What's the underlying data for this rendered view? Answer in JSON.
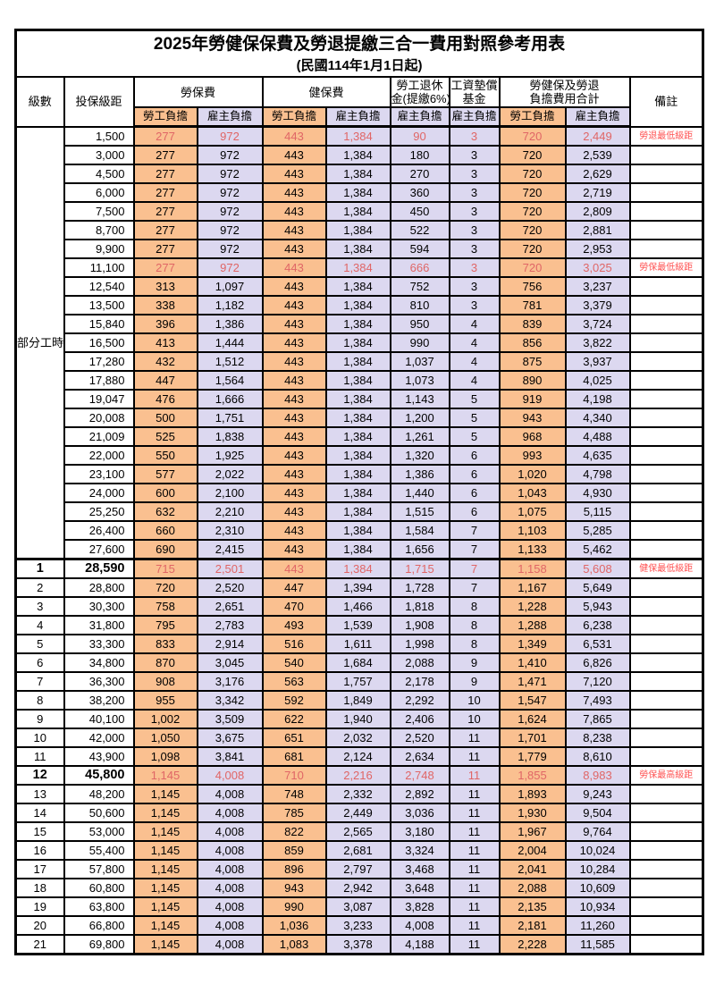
{
  "title": "2025年勞健保保費及勞退提繳三合一費用對照參考用表",
  "subtitle": "(民國114年1月1日起)",
  "header": {
    "level": "級數",
    "bracket": "投保級距",
    "labor_group": "勞保費",
    "health_group": "健保費",
    "pension_line1": "勞工退休",
    "pension_line2": "金(提繳6%)",
    "wagefund_line1": "工資墊償",
    "wagefund_line2": "基金",
    "total_line1": "勞健保及勞退",
    "total_line2": "負擔費用合計",
    "remark": "備註",
    "employee_share": "勞工負擔",
    "employer_share": "雇主負擔"
  },
  "part_time": {
    "label": "部分工時",
    "rowspan": 23
  },
  "colors": {
    "employee_col_bg": "#FAC090",
    "employer_col_bg": "#DCD8F0",
    "highlight_value": "#E06666",
    "remark_red": "#FF5252",
    "border": "#000000"
  },
  "rows": [
    {
      "bracket": "1,500",
      "values": [
        "277",
        "972",
        "443",
        "1,384",
        "90",
        "3",
        "720",
        "2,449"
      ],
      "remark": "勞退最低級距",
      "highlight": true
    },
    {
      "bracket": "3,000",
      "values": [
        "277",
        "972",
        "443",
        "1,384",
        "180",
        "3",
        "720",
        "2,539"
      ]
    },
    {
      "bracket": "4,500",
      "values": [
        "277",
        "972",
        "443",
        "1,384",
        "270",
        "3",
        "720",
        "2,629"
      ]
    },
    {
      "bracket": "6,000",
      "values": [
        "277",
        "972",
        "443",
        "1,384",
        "360",
        "3",
        "720",
        "2,719"
      ]
    },
    {
      "bracket": "7,500",
      "values": [
        "277",
        "972",
        "443",
        "1,384",
        "450",
        "3",
        "720",
        "2,809"
      ]
    },
    {
      "bracket": "8,700",
      "values": [
        "277",
        "972",
        "443",
        "1,384",
        "522",
        "3",
        "720",
        "2,881"
      ]
    },
    {
      "bracket": "9,900",
      "values": [
        "277",
        "972",
        "443",
        "1,384",
        "594",
        "3",
        "720",
        "2,953"
      ]
    },
    {
      "bracket": "11,100",
      "values": [
        "277",
        "972",
        "443",
        "1,384",
        "666",
        "3",
        "720",
        "3,025"
      ],
      "remark": "勞保最低級距",
      "highlight": true
    },
    {
      "bracket": "12,540",
      "values": [
        "313",
        "1,097",
        "443",
        "1,384",
        "752",
        "3",
        "756",
        "3,237"
      ]
    },
    {
      "bracket": "13,500",
      "values": [
        "338",
        "1,182",
        "443",
        "1,384",
        "810",
        "3",
        "781",
        "3,379"
      ]
    },
    {
      "bracket": "15,840",
      "values": [
        "396",
        "1,386",
        "443",
        "1,384",
        "950",
        "4",
        "839",
        "3,724"
      ]
    },
    {
      "bracket": "16,500",
      "values": [
        "413",
        "1,444",
        "443",
        "1,384",
        "990",
        "4",
        "856",
        "3,822"
      ]
    },
    {
      "bracket": "17,280",
      "values": [
        "432",
        "1,512",
        "443",
        "1,384",
        "1,037",
        "4",
        "875",
        "3,937"
      ]
    },
    {
      "bracket": "17,880",
      "values": [
        "447",
        "1,564",
        "443",
        "1,384",
        "1,073",
        "4",
        "890",
        "4,025"
      ]
    },
    {
      "bracket": "19,047",
      "values": [
        "476",
        "1,666",
        "443",
        "1,384",
        "1,143",
        "5",
        "919",
        "4,198"
      ]
    },
    {
      "bracket": "20,008",
      "values": [
        "500",
        "1,751",
        "443",
        "1,384",
        "1,200",
        "5",
        "943",
        "4,340"
      ]
    },
    {
      "bracket": "21,009",
      "values": [
        "525",
        "1,838",
        "443",
        "1,384",
        "1,261",
        "5",
        "968",
        "4,488"
      ]
    },
    {
      "bracket": "22,000",
      "values": [
        "550",
        "1,925",
        "443",
        "1,384",
        "1,320",
        "6",
        "993",
        "4,635"
      ]
    },
    {
      "bracket": "23,100",
      "values": [
        "577",
        "2,022",
        "443",
        "1,384",
        "1,386",
        "6",
        "1,020",
        "4,798"
      ]
    },
    {
      "bracket": "24,000",
      "values": [
        "600",
        "2,100",
        "443",
        "1,384",
        "1,440",
        "6",
        "1,043",
        "4,930"
      ]
    },
    {
      "bracket": "25,250",
      "values": [
        "632",
        "2,210",
        "443",
        "1,384",
        "1,515",
        "6",
        "1,075",
        "5,115"
      ]
    },
    {
      "bracket": "26,400",
      "values": [
        "660",
        "2,310",
        "443",
        "1,384",
        "1,584",
        "7",
        "1,103",
        "5,285"
      ]
    },
    {
      "bracket": "27,600",
      "values": [
        "690",
        "2,415",
        "443",
        "1,384",
        "1,656",
        "7",
        "1,133",
        "5,462"
      ]
    },
    {
      "level": "1",
      "bracket": "28,590",
      "values": [
        "715",
        "2,501",
        "443",
        "1,384",
        "1,715",
        "7",
        "1,158",
        "5,608"
      ],
      "remark": "健保最低級距",
      "highlight": true,
      "emph": true,
      "section_start": true
    },
    {
      "level": "2",
      "bracket": "28,800",
      "values": [
        "720",
        "2,520",
        "447",
        "1,394",
        "1,728",
        "7",
        "1,167",
        "5,649"
      ]
    },
    {
      "level": "3",
      "bracket": "30,300",
      "values": [
        "758",
        "2,651",
        "470",
        "1,466",
        "1,818",
        "8",
        "1,228",
        "5,943"
      ]
    },
    {
      "level": "4",
      "bracket": "31,800",
      "values": [
        "795",
        "2,783",
        "493",
        "1,539",
        "1,908",
        "8",
        "1,288",
        "6,238"
      ]
    },
    {
      "level": "5",
      "bracket": "33,300",
      "values": [
        "833",
        "2,914",
        "516",
        "1,611",
        "1,998",
        "8",
        "1,349",
        "6,531"
      ]
    },
    {
      "level": "6",
      "bracket": "34,800",
      "values": [
        "870",
        "3,045",
        "540",
        "1,684",
        "2,088",
        "9",
        "1,410",
        "6,826"
      ]
    },
    {
      "level": "7",
      "bracket": "36,300",
      "values": [
        "908",
        "3,176",
        "563",
        "1,757",
        "2,178",
        "9",
        "1,471",
        "7,120"
      ]
    },
    {
      "level": "8",
      "bracket": "38,200",
      "values": [
        "955",
        "3,342",
        "592",
        "1,849",
        "2,292",
        "10",
        "1,547",
        "7,493"
      ]
    },
    {
      "level": "9",
      "bracket": "40,100",
      "values": [
        "1,002",
        "3,509",
        "622",
        "1,940",
        "2,406",
        "10",
        "1,624",
        "7,865"
      ]
    },
    {
      "level": "10",
      "bracket": "42,000",
      "values": [
        "1,050",
        "3,675",
        "651",
        "2,032",
        "2,520",
        "11",
        "1,701",
        "8,238"
      ]
    },
    {
      "level": "11",
      "bracket": "43,900",
      "values": [
        "1,098",
        "3,841",
        "681",
        "2,124",
        "2,634",
        "11",
        "1,779",
        "8,610"
      ]
    },
    {
      "level": "12",
      "bracket": "45,800",
      "values": [
        "1,145",
        "4,008",
        "710",
        "2,216",
        "2,748",
        "11",
        "1,855",
        "8,983"
      ],
      "remark": "勞保最高級距",
      "highlight": true,
      "emph": true
    },
    {
      "level": "13",
      "bracket": "48,200",
      "values": [
        "1,145",
        "4,008",
        "748",
        "2,332",
        "2,892",
        "11",
        "1,893",
        "9,243"
      ]
    },
    {
      "level": "14",
      "bracket": "50,600",
      "values": [
        "1,145",
        "4,008",
        "785",
        "2,449",
        "3,036",
        "11",
        "1,930",
        "9,504"
      ]
    },
    {
      "level": "15",
      "bracket": "53,000",
      "values": [
        "1,145",
        "4,008",
        "822",
        "2,565",
        "3,180",
        "11",
        "1,967",
        "9,764"
      ]
    },
    {
      "level": "16",
      "bracket": "55,400",
      "values": [
        "1,145",
        "4,008",
        "859",
        "2,681",
        "3,324",
        "11",
        "2,004",
        "10,024"
      ]
    },
    {
      "level": "17",
      "bracket": "57,800",
      "values": [
        "1,145",
        "4,008",
        "896",
        "2,797",
        "3,468",
        "11",
        "2,041",
        "10,284"
      ]
    },
    {
      "level": "18",
      "bracket": "60,800",
      "values": [
        "1,145",
        "4,008",
        "943",
        "2,942",
        "3,648",
        "11",
        "2,088",
        "10,609"
      ]
    },
    {
      "level": "19",
      "bracket": "63,800",
      "values": [
        "1,145",
        "4,008",
        "990",
        "3,087",
        "3,828",
        "11",
        "2,135",
        "10,934"
      ]
    },
    {
      "level": "20",
      "bracket": "66,800",
      "values": [
        "1,145",
        "4,008",
        "1,036",
        "3,233",
        "4,008",
        "11",
        "2,181",
        "11,260"
      ]
    },
    {
      "level": "21",
      "bracket": "69,800",
      "values": [
        "1,145",
        "4,008",
        "1,083",
        "3,378",
        "4,188",
        "11",
        "2,228",
        "11,585"
      ]
    }
  ]
}
